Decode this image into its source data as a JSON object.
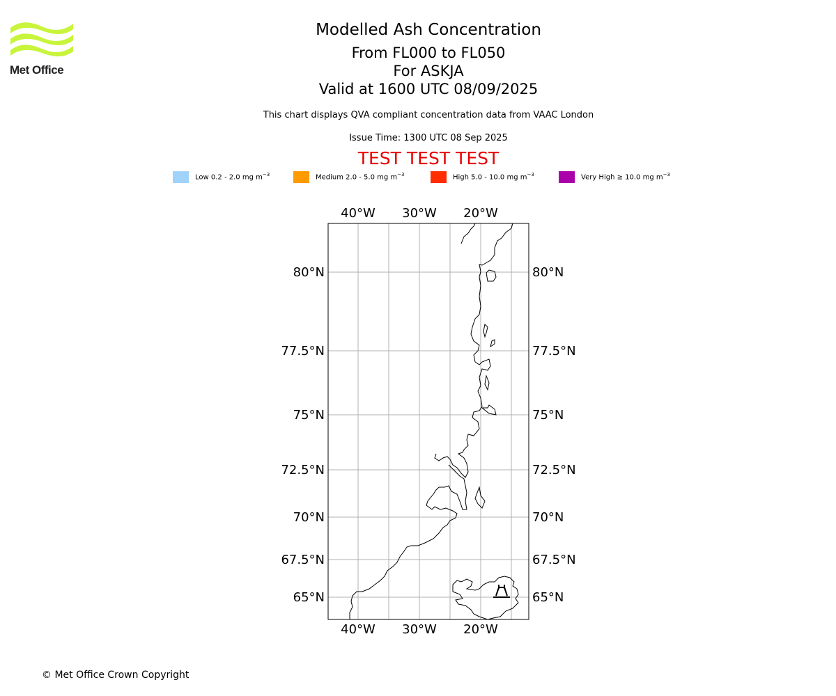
{
  "logo": {
    "text": "Met Office",
    "color": "#c8f53c"
  },
  "header": {
    "title": "Modelled Ash Concentration",
    "levels": "From FL000 to FL050",
    "volcano": "For ASKJA",
    "valid": "Valid at 1600 UTC 08/09/2025",
    "description": "This chart displays QVA compliant concentration data from VAAC London",
    "issue_time": "Issue Time: 1300 UTC 08 Sep 2025",
    "test_banner": "TEST TEST TEST",
    "test_color": "#e60000"
  },
  "legend": [
    {
      "label": "Low 0.2 - 2.0 mg m",
      "color": "#a0d2fa"
    },
    {
      "label": "Medium 2.0 - 5.0 mg m",
      "color": "#ff9b00"
    },
    {
      "label": "High 5.0 - 10.0 mg m",
      "color": "#ff2d00"
    },
    {
      "label": "Very High  ≥  10.0 mg m",
      "color": "#aa00aa"
    }
  ],
  "legend_unit_exponent": "−3",
  "map": {
    "lon_labels": [
      "40°W",
      "30°W",
      "20°W"
    ],
    "lat_labels": [
      "80°N",
      "77.5°N",
      "75°N",
      "72.5°N",
      "70°N",
      "67.5°N",
      "65°N"
    ],
    "gridlines": true,
    "volcano_marker": "volcano-icon"
  },
  "footer": {
    "copyright": "© Met Office Crown Copyright"
  }
}
